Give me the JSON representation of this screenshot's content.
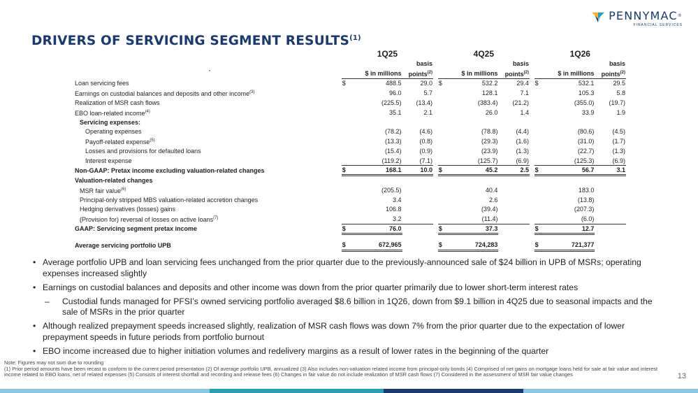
{
  "brand": {
    "name": "PENNYMAC",
    "tm": "®",
    "sub": "FINANCIAL SERVICES",
    "colors": {
      "navy": "#1b3a6b",
      "gold": "#f2b233",
      "teal": "#2a9fb0",
      "lightblue": "#8cc7e0"
    }
  },
  "title": {
    "text": "DRIVERS OF SERVICING SEGMENT RESULTS",
    "note": "(1)"
  },
  "table": {
    "periods": [
      "1Q25",
      "4Q25",
      "1Q26"
    ],
    "col_amt": "$ in millions",
    "col_bp_1": "basis",
    "col_bp_2": "points",
    "col_bp_note": "(2)",
    "dollar": "$",
    "rows": [
      {
        "label": "Loan servicing fees",
        "note": "",
        "v": [
          {
            "d": "$",
            "a": "488.5",
            "b": "29.0"
          },
          {
            "d": "$",
            "a": "532.2",
            "b": "29.4"
          },
          {
            "d": "$",
            "a": "532.1",
            "b": "29.5"
          }
        ]
      },
      {
        "label": "Earnings on custodial balances and deposits and other income",
        "note": "(3)",
        "v": [
          {
            "d": "",
            "a": "96.0",
            "b": "5.7"
          },
          {
            "d": "",
            "a": "128.1",
            "b": "7.1"
          },
          {
            "d": "",
            "a": "105.3",
            "b": "5.8"
          }
        ]
      },
      {
        "label": "Realization of MSR cash flows",
        "note": "",
        "v": [
          {
            "d": "",
            "a": "(225.5)",
            "b": "(13.4)"
          },
          {
            "d": "",
            "a": "(383.4)",
            "b": "(21.2)"
          },
          {
            "d": "",
            "a": "(355.0)",
            "b": "(19.7)"
          }
        ]
      },
      {
        "label": "EBO loan-related income",
        "note": "(4)",
        "v": [
          {
            "d": "",
            "a": "35.1",
            "b": "2.1"
          },
          {
            "d": "",
            "a": "26.0",
            "b": "1.4"
          },
          {
            "d": "",
            "a": "33.9",
            "b": "1.9"
          }
        ]
      },
      {
        "label": "Servicing expenses:",
        "note": "",
        "v": [
          {
            "d": "",
            "a": "",
            "b": ""
          },
          {
            "d": "",
            "a": "",
            "b": ""
          },
          {
            "d": "",
            "a": "",
            "b": ""
          }
        ]
      },
      {
        "label": "Operating expenses",
        "note": "",
        "v": [
          {
            "d": "",
            "a": "(78.2)",
            "b": "(4.6)"
          },
          {
            "d": "",
            "a": "(78.8)",
            "b": "(4.4)"
          },
          {
            "d": "",
            "a": "(80.6)",
            "b": "(4.5)"
          }
        ]
      },
      {
        "label": "Payoff-related expense",
        "note": "(5)",
        "v": [
          {
            "d": "",
            "a": "(13.3)",
            "b": "(0.8)"
          },
          {
            "d": "",
            "a": "(29.3)",
            "b": "(1.6)"
          },
          {
            "d": "",
            "a": "(31.0)",
            "b": "(1.7)"
          }
        ]
      },
      {
        "label": "Losses and provisions for defaulted loans",
        "note": "",
        "v": [
          {
            "d": "",
            "a": "(15.4)",
            "b": "(0.9)"
          },
          {
            "d": "",
            "a": "(23.9)",
            "b": "(1.3)"
          },
          {
            "d": "",
            "a": "(22.7)",
            "b": "(1.3)"
          }
        ]
      },
      {
        "label": "Interest expense",
        "note": "",
        "v": [
          {
            "d": "",
            "a": "(119.2)",
            "b": "(7.1)"
          },
          {
            "d": "",
            "a": "(125.7)",
            "b": "(6.9)"
          },
          {
            "d": "",
            "a": "(125.3)",
            "b": "(6.9)"
          }
        ]
      },
      {
        "label": "Non-GAAP: Pretax income excluding valuation-related changes",
        "note": "",
        "v": [
          {
            "d": "$",
            "a": "168.1",
            "b": "10.0"
          },
          {
            "d": "$",
            "a": "45.2",
            "b": "2.5"
          },
          {
            "d": "$",
            "a": "56.7",
            "b": "3.1"
          }
        ]
      },
      {
        "label": "Valuation-related changes",
        "note": "",
        "v": [
          {
            "d": "",
            "a": "",
            "b": ""
          },
          {
            "d": "",
            "a": "",
            "b": ""
          },
          {
            "d": "",
            "a": "",
            "b": ""
          }
        ]
      },
      {
        "label": "MSR fair value",
        "note": "(6)",
        "v": [
          {
            "d": "",
            "a": "(205.5)",
            "b": ""
          },
          {
            "d": "",
            "a": "40.4",
            "b": ""
          },
          {
            "d": "",
            "a": "183.0",
            "b": ""
          }
        ]
      },
      {
        "label": "Principal-only stripped MBS valuation-related accretion changes",
        "note": "",
        "v": [
          {
            "d": "",
            "a": "3.4",
            "b": ""
          },
          {
            "d": "",
            "a": "2.6",
            "b": ""
          },
          {
            "d": "",
            "a": "(13.8)",
            "b": ""
          }
        ]
      },
      {
        "label": "Hedging derivatives (losses) gains",
        "note": "",
        "v": [
          {
            "d": "",
            "a": "106.8",
            "b": ""
          },
          {
            "d": "",
            "a": "(39.4)",
            "b": ""
          },
          {
            "d": "",
            "a": "(207.3)",
            "b": ""
          }
        ]
      },
      {
        "label": "(Provision for) reversal of losses on active loans",
        "note": "(7)",
        "v": [
          {
            "d": "",
            "a": "3.2",
            "b": ""
          },
          {
            "d": "",
            "a": "(11.4)",
            "b": ""
          },
          {
            "d": "",
            "a": "(6.0)",
            "b": ""
          }
        ]
      },
      {
        "label": "GAAP: Servicing segment pretax income",
        "note": "",
        "v": [
          {
            "d": "$",
            "a": "76.0",
            "b": ""
          },
          {
            "d": "$",
            "a": "37.3",
            "b": ""
          },
          {
            "d": "$",
            "a": "12.7",
            "b": ""
          }
        ]
      },
      {
        "label": "Average servicing portfolio UPB",
        "note": "",
        "v": [
          {
            "d": "$",
            "a": "672,965",
            "b": ""
          },
          {
            "d": "$",
            "a": "724,283",
            "b": ""
          },
          {
            "d": "$",
            "a": "721,377",
            "b": ""
          }
        ]
      }
    ]
  },
  "bullets": [
    "Average portfolio UPB and loan servicing fees unchanged from the prior quarter due to the previously-announced sale of $24 billion in UPB of MSRs; operating expenses increased slightly",
    "Earnings on custodial balances and deposits and other income was down from the prior quarter primarily due to lower short-term interest rates",
    "Custodial funds managed for PFSI’s owned servicing portfolio averaged $8.6 billion in 1Q26, down from $9.1 billion in 4Q25 due to seasonal impacts and the sale of MSRs in the prior quarter",
    "Although realized prepayment speeds increased slightly, realization of MSR cash flows was down 7% from the prior quarter due to the expectation of lower prepayment speeds in future periods from portfolio burnout",
    "EBO income increased due to higher initiation volumes and redelivery margins as a result of lower rates in the beginning of the quarter"
  ],
  "notes": {
    "line1": "Note: Figures may not sum due to rounding",
    "line2": "(1) Prior period amounts have been recast to conform to the current period presentation     (2) Of average portfolio UPB, annualized     (3) Also includes non-valuation related income from principal-only bonds    (4) Comprised of net gains on mortgage loans held for sale at fair value and interest income related to EBO loans, net of related expenses     (5) Consists of interest shortfall and recording and release fees     (6) Changes in fair value do not include realization of MSR cash flows     (7) Considered in the assessment of MSR fair value changes"
  },
  "page_number": "13"
}
